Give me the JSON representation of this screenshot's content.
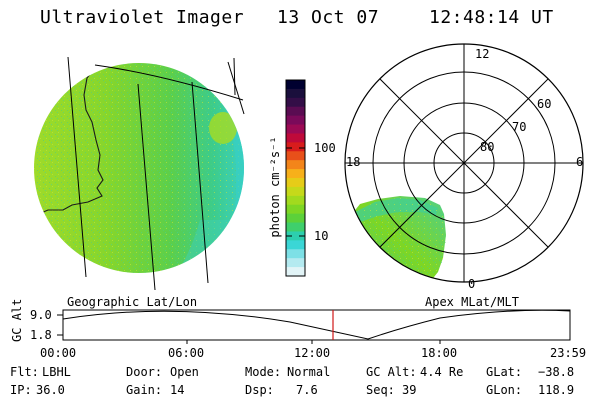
{
  "header": {
    "instrument": "Ultraviolet Imager",
    "date": "13 Oct 07",
    "time": "12:48:14 UT"
  },
  "colorbar": {
    "unit_label": "photon cm⁻²s⁻¹",
    "ticks": [
      "100",
      "10"
    ],
    "colors": [
      "#000030",
      "#1a0f3c",
      "#330e47",
      "#5a0c52",
      "#7b0a5a",
      "#9c0a54",
      "#bf0a3a",
      "#d81c1c",
      "#e8501a",
      "#f3851a",
      "#f7b01a",
      "#e6cc18",
      "#c6d91a",
      "#a2da1e",
      "#7ed624",
      "#5cd13a",
      "#3fcf6c",
      "#2dcfae",
      "#3bd6d6",
      "#7de0e6",
      "#b4eaf0",
      "#e2f4f7"
    ]
  },
  "left_panel": {
    "label": "Geographic Lat/Lon"
  },
  "right_panel": {
    "label": "Apex MLat/MLT",
    "mlt_labels": [
      "12",
      "18",
      "6",
      "0"
    ],
    "mlat_labels": [
      "60",
      "70",
      "80"
    ]
  },
  "altitude_plot": {
    "ylabel": "GC Alt",
    "yticks": [
      "9.0",
      "1.8"
    ],
    "xticks": [
      "00:00",
      "06:00",
      "12:00",
      "18:00",
      "23:59"
    ],
    "current_time_line_color": "#d01818"
  },
  "status": {
    "flt_label": "Flt:",
    "flt_value": "LBHL",
    "ip_label": "IP:",
    "ip_value": "36.0",
    "door_label": "Door:",
    "door_value": "Open",
    "gain_label": "Gain:",
    "gain_value": "14",
    "mode_label": "Mode:",
    "mode_value": "Normal",
    "dsp_label": "Dsp:",
    "dsp_value": "7.6",
    "gcalt_label": "GC Alt:",
    "gcalt_value": "4.4 Re",
    "seq_label": "Seq:",
    "seq_value": "39",
    "glat_label": "GLat:",
    "glat_value": "−38.8",
    "glon_label": "GLon:",
    "glon_value": "118.9"
  }
}
